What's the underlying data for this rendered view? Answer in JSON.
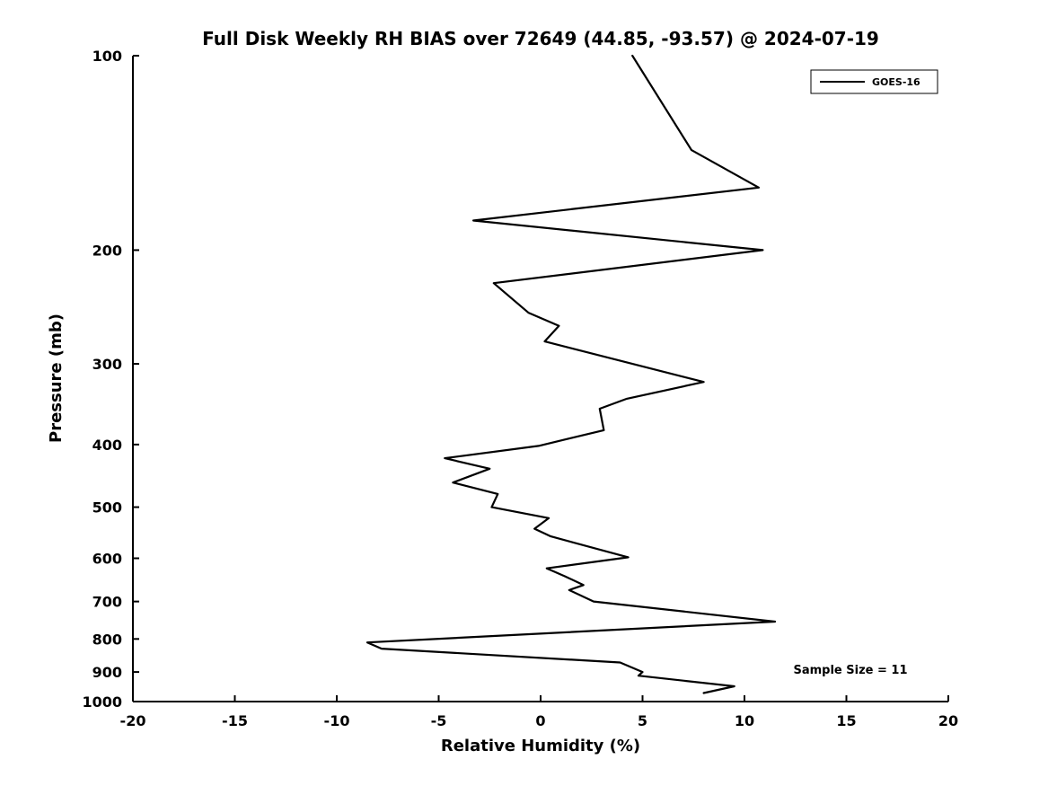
{
  "figure": {
    "background": "#ffffff",
    "line_color": "#000000",
    "axis_color": "#000000"
  },
  "chart_data": {
    "type": "line",
    "title": "Full Disk Weekly RH BIAS over 72649 (44.85, -93.57) @ 2024-07-19",
    "xlabel": "Relative Humidity (%)",
    "ylabel": "Pressure (mb)",
    "annotation": "Sample Size = 11",
    "xlim": [
      -20,
      20
    ],
    "ylim": [
      100,
      1000
    ],
    "x_ticks": [
      -20,
      -15,
      -10,
      -5,
      0,
      5,
      10,
      15,
      20
    ],
    "y_ticks": [
      100,
      200,
      300,
      400,
      500,
      600,
      700,
      800,
      900,
      1000
    ],
    "y_scale": "log",
    "y_inverted": true,
    "grid": false,
    "legend_position": "top-right",
    "series": [
      {
        "name": "GOES-16",
        "color": "#000000",
        "points_format": "[rh_bias_percent, pressure_mb]",
        "points": [
          [
            4.5,
            100
          ],
          [
            7.4,
            140
          ],
          [
            10.7,
            160
          ],
          [
            -3.3,
            180
          ],
          [
            10.9,
            200
          ],
          [
            -2.3,
            225
          ],
          [
            -0.6,
            250
          ],
          [
            0.9,
            262
          ],
          [
            0.2,
            277
          ],
          [
            8.0,
            320
          ],
          [
            4.2,
            340
          ],
          [
            2.9,
            352
          ],
          [
            3.1,
            380
          ],
          [
            -0.1,
            402
          ],
          [
            -4.7,
            420
          ],
          [
            -2.5,
            436
          ],
          [
            -4.3,
            458
          ],
          [
            -2.1,
            477
          ],
          [
            -2.4,
            500
          ],
          [
            0.4,
            520
          ],
          [
            -0.3,
            540
          ],
          [
            0.5,
            555
          ],
          [
            4.3,
            598
          ],
          [
            0.3,
            622
          ],
          [
            1.2,
            640
          ],
          [
            2.1,
            660
          ],
          [
            1.4,
            672
          ],
          [
            2.6,
            700
          ],
          [
            11.5,
            752
          ],
          [
            -8.5,
            810
          ],
          [
            -7.8,
            828
          ],
          [
            3.9,
            870
          ],
          [
            5.0,
            900
          ],
          [
            4.8,
            912
          ],
          [
            9.5,
            947
          ],
          [
            8.0,
            970
          ]
        ]
      }
    ]
  }
}
